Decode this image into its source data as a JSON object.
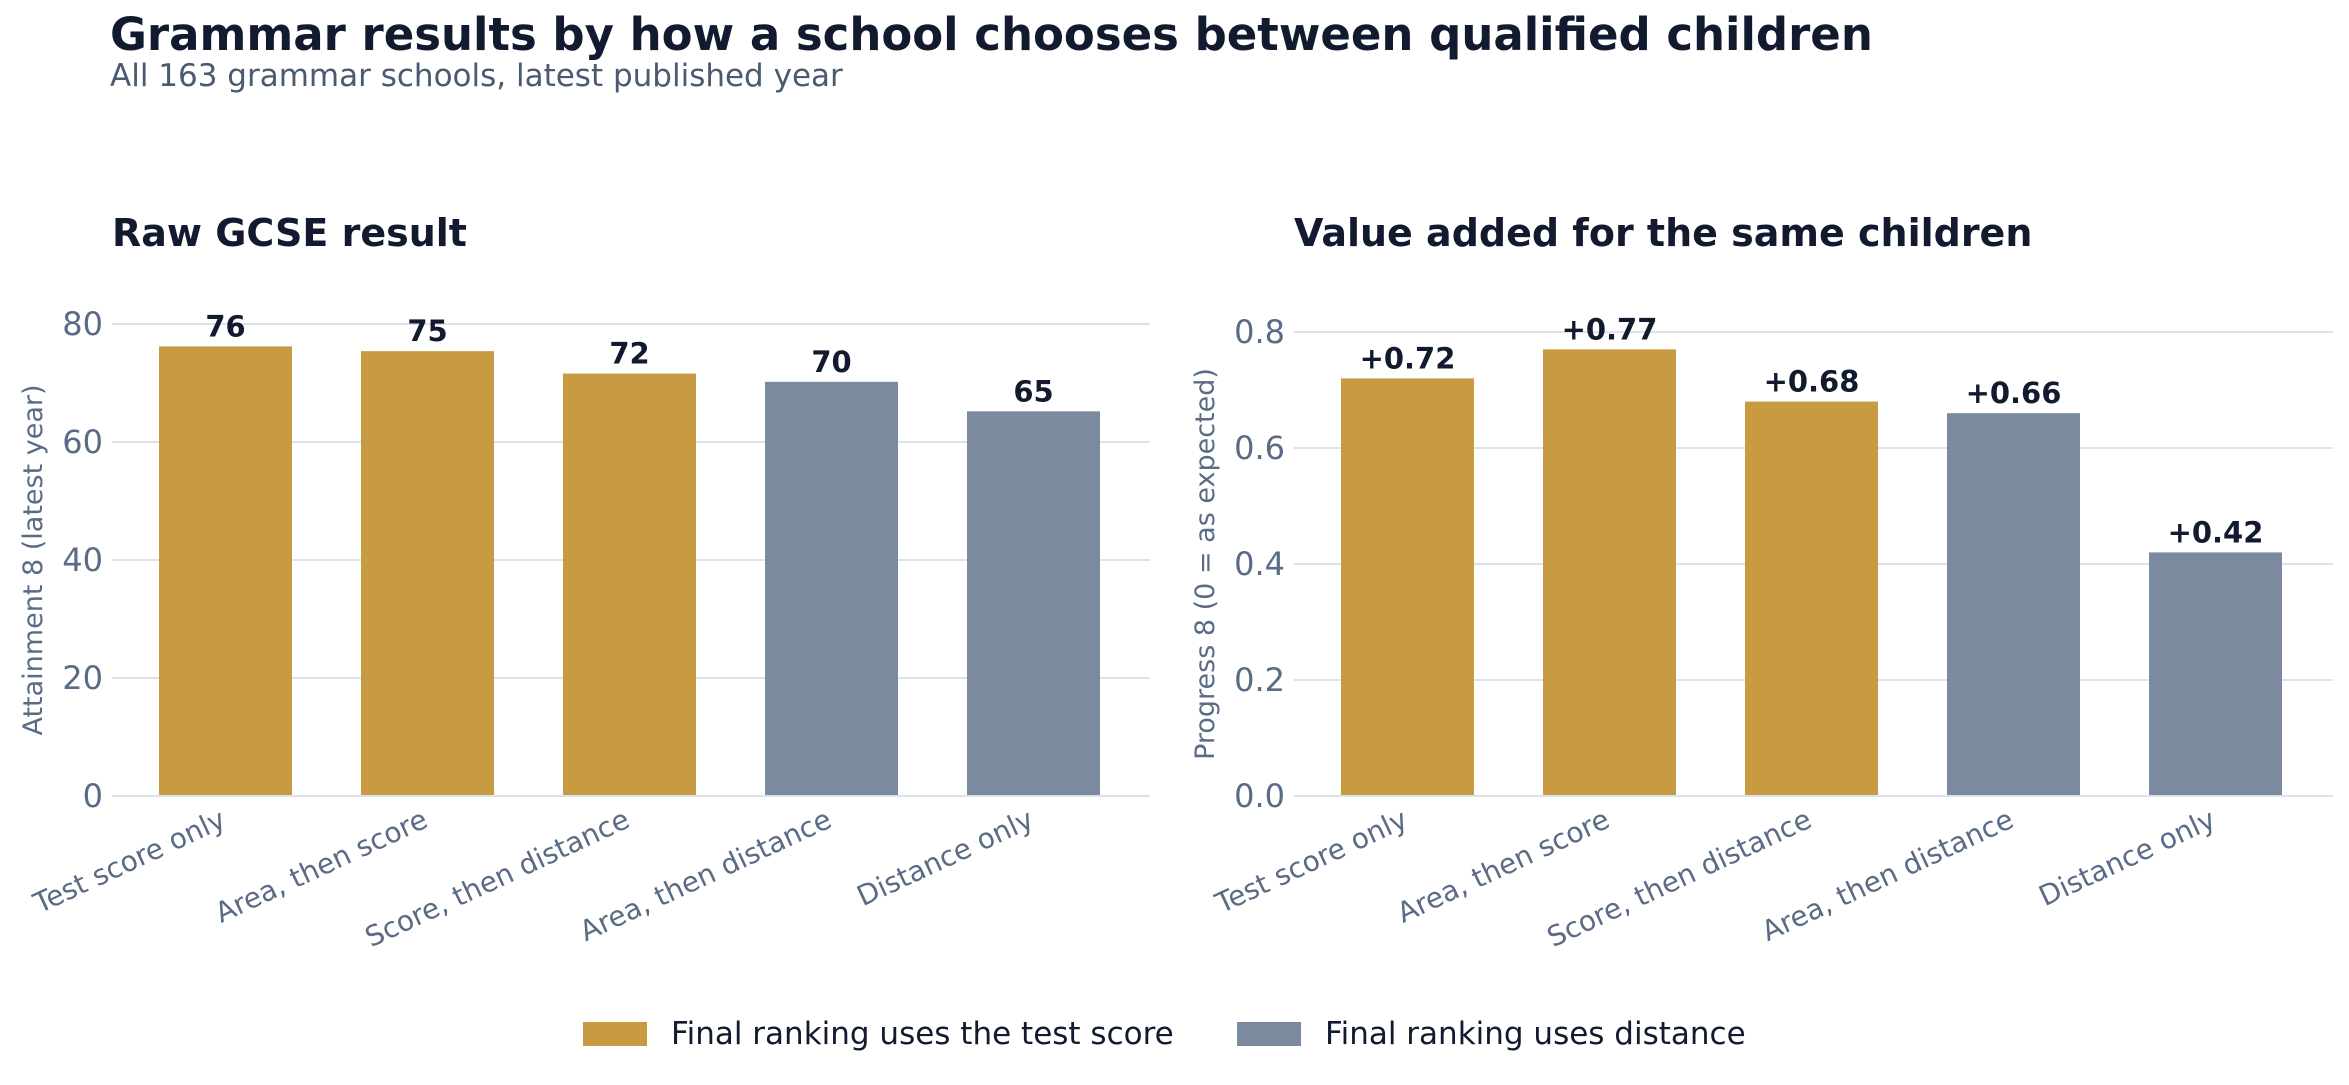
{
  "title": "Grammar results by how a school chooses between qualified children",
  "subtitle": "All 163 grammar schools, latest published year",
  "colors": {
    "test_score": "#c89a42",
    "distance": "#7c8aa0",
    "grid": "#dde3ec",
    "tick_text": "#5a6b86",
    "label_text": "#111a2e"
  },
  "legend": [
    {
      "label": "Final ranking uses the test score",
      "color": "#c89a42"
    },
    {
      "label": "Final ranking uses distance",
      "color": "#7c8aa0"
    }
  ],
  "chart_data": [
    {
      "type": "bar",
      "title": "Raw GCSE result",
      "xlabel": "",
      "ylabel": "Attainment 8 (latest year)",
      "categories": [
        "Test score only",
        "Area, then score",
        "Score, then distance",
        "Area, then distance",
        "Distance only"
      ],
      "values": [
        76,
        75,
        72,
        70,
        65
      ],
      "bar_values": [
        76.2,
        75.4,
        71.6,
        70.2,
        65.2
      ],
      "data_labels": [
        "76",
        "75",
        "72",
        "70",
        "65"
      ],
      "bar_colors": [
        "#c89a42",
        "#c89a42",
        "#c89a42",
        "#7c8aa0",
        "#7c8aa0"
      ],
      "ylim": [
        0,
        80
      ],
      "yticks": [
        0,
        20,
        40,
        60,
        80
      ],
      "ytick_labels": [
        "0",
        "20",
        "40",
        "60",
        "80"
      ],
      "grid": true
    },
    {
      "type": "bar",
      "title": "Value added for the same children",
      "xlabel": "",
      "ylabel": "Progress 8 (0 = as expected)",
      "categories": [
        "Test score only",
        "Area, then score",
        "Score, then distance",
        "Area, then distance",
        "Distance only"
      ],
      "values": [
        0.72,
        0.77,
        0.68,
        0.66,
        0.42
      ],
      "bar_values": [
        0.72,
        0.77,
        0.68,
        0.66,
        0.42
      ],
      "data_labels": [
        "+0.72",
        "+0.77",
        "+0.68",
        "+0.66",
        "+0.42"
      ],
      "bar_colors": [
        "#c89a42",
        "#c89a42",
        "#c89a42",
        "#7c8aa0",
        "#7c8aa0"
      ],
      "ylim": [
        0,
        0.8
      ],
      "yticks": [
        0,
        0.2,
        0.4,
        0.6,
        0.8
      ],
      "ytick_labels": [
        "0.0",
        "0.2",
        "0.4",
        "0.6",
        "0.8"
      ],
      "grid": true
    }
  ]
}
